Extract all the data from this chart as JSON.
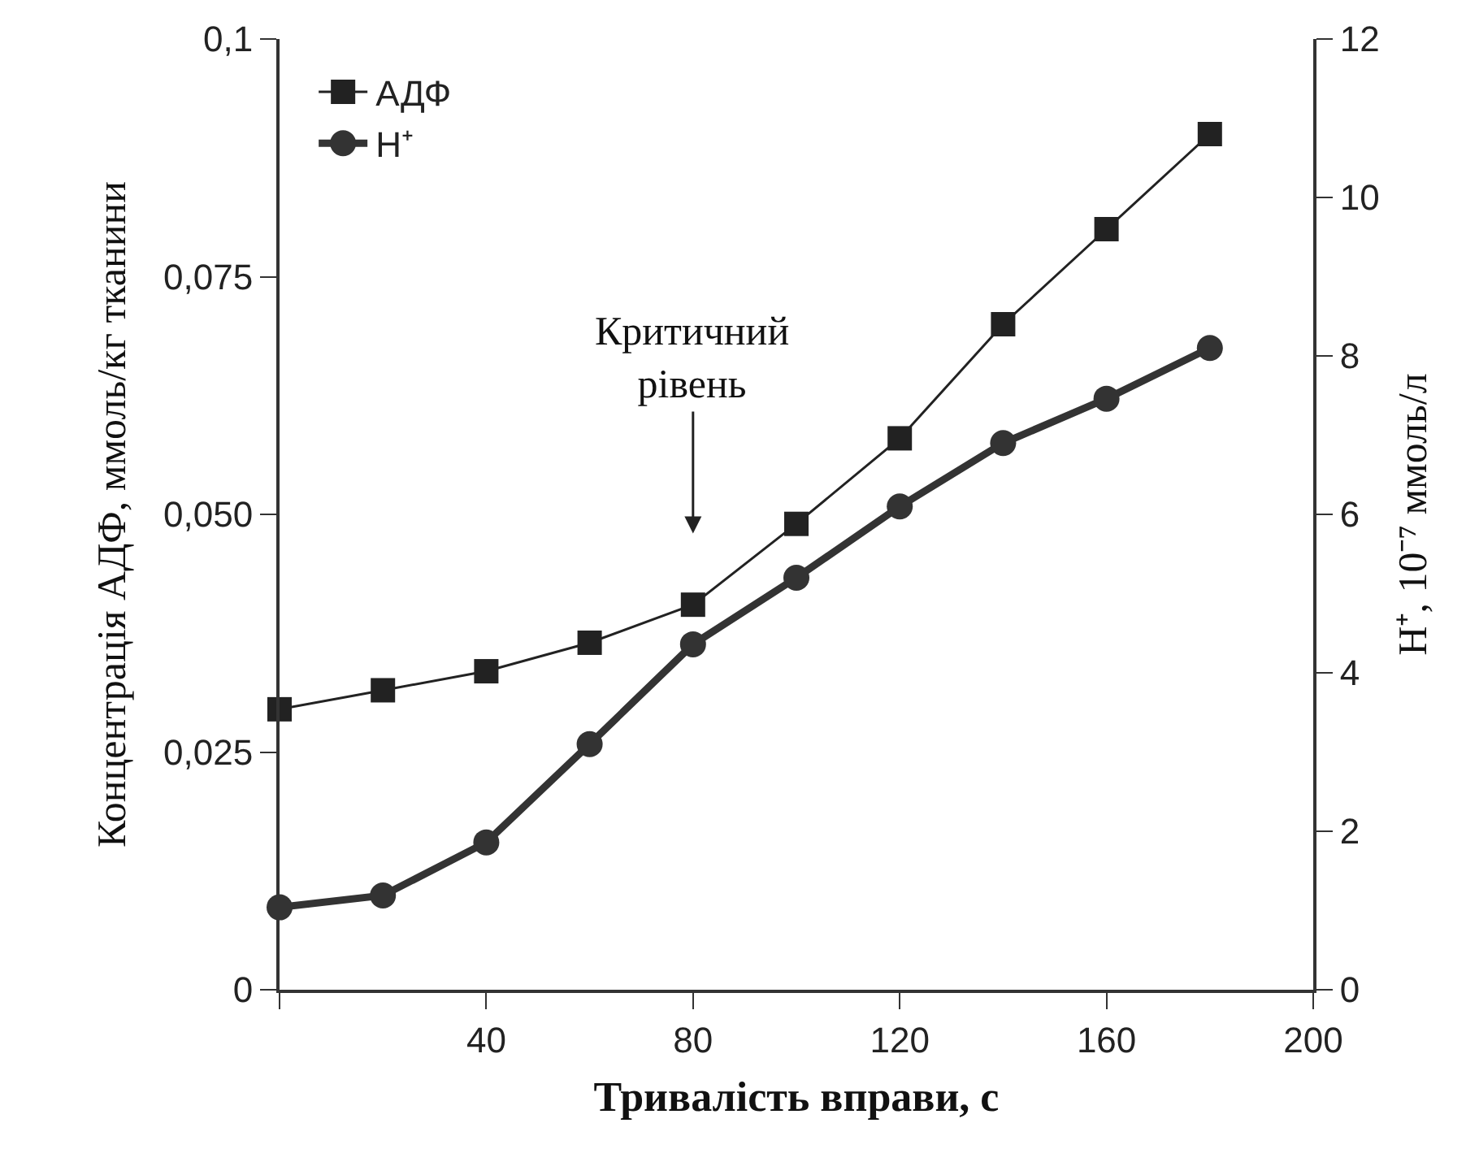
{
  "chart_data": {
    "type": "line",
    "xlabel": "Тривалість вправи, с",
    "ylabel": "Концентрація АДФ, ммоль/кг тканини",
    "y2label": "Н⁺, 10⁻⁷ ммоль/л",
    "x": [
      0,
      20,
      40,
      60,
      80,
      100,
      120,
      140,
      160,
      180
    ],
    "series": [
      {
        "name": "АДФ",
        "color": "#222222",
        "marker": "square",
        "values": [
          0.0295,
          0.0315,
          0.0335,
          0.0365,
          0.0405,
          0.049,
          0.058,
          0.07,
          0.08,
          0.09
        ]
      },
      {
        "name": "Н⁺",
        "color": "#333333",
        "marker": "circle",
        "axis": "y2",
        "values": [
          1.04,
          1.19,
          1.86,
          3.1,
          4.36,
          5.2,
          6.1,
          6.9,
          7.46,
          8.1
        ]
      }
    ],
    "xlim": [
      0,
      200
    ],
    "xticks": [
      {
        "value": 0,
        "label": null
      },
      40,
      80,
      120,
      160,
      200
    ],
    "ylim": [
      0,
      0.1
    ],
    "yticks": [
      0,
      {
        "value": 0.025,
        "label": "0,025"
      },
      {
        "value": 0.05,
        "label": "0,050"
      },
      {
        "value": 0.075,
        "label": "0,075"
      },
      {
        "value": 0.1,
        "label": "0,1"
      }
    ],
    "y2lim": [
      0,
      12
    ],
    "y2ticks": [
      0,
      2,
      4,
      6,
      8,
      10,
      12
    ],
    "annotations": [
      "Критичний\nрівень"
    ],
    "grid": false,
    "legend": "top left",
    "line_style": "solid"
  }
}
